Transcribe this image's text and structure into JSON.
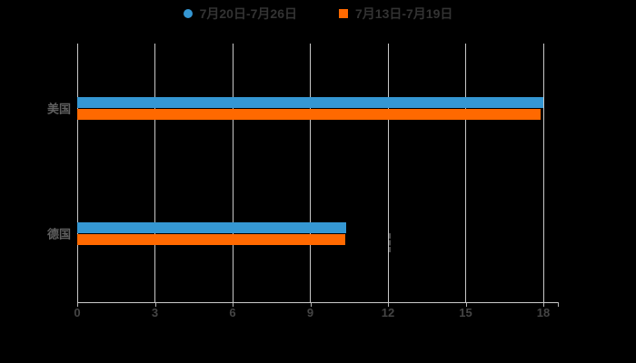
{
  "legend": {
    "items": [
      {
        "label": "7月20日-7月26日",
        "color": "#3597d3",
        "shape": "circle"
      },
      {
        "label": "7月13日-7月19日",
        "color": "#ff6900",
        "shape": "square"
      }
    ]
  },
  "chart_data": {
    "type": "bar",
    "orientation": "horizontal",
    "title": "",
    "xlabel": "",
    "ylabel": "",
    "categories": [
      "美国",
      "德国"
    ],
    "series": [
      {
        "name": "7月20日-7月26日",
        "color": "#3597d3",
        "values": [
          18,
          10.4
        ]
      },
      {
        "name": "7月13日-7月19日",
        "color": "#ff6900",
        "values": [
          17.9,
          10.35
        ]
      }
    ],
    "xlim": [
      0,
      18
    ],
    "xticks": [
      0,
      3,
      6,
      9,
      12,
      15,
      18
    ],
    "grid": true,
    "legend_position": "top",
    "background": "#000000"
  }
}
